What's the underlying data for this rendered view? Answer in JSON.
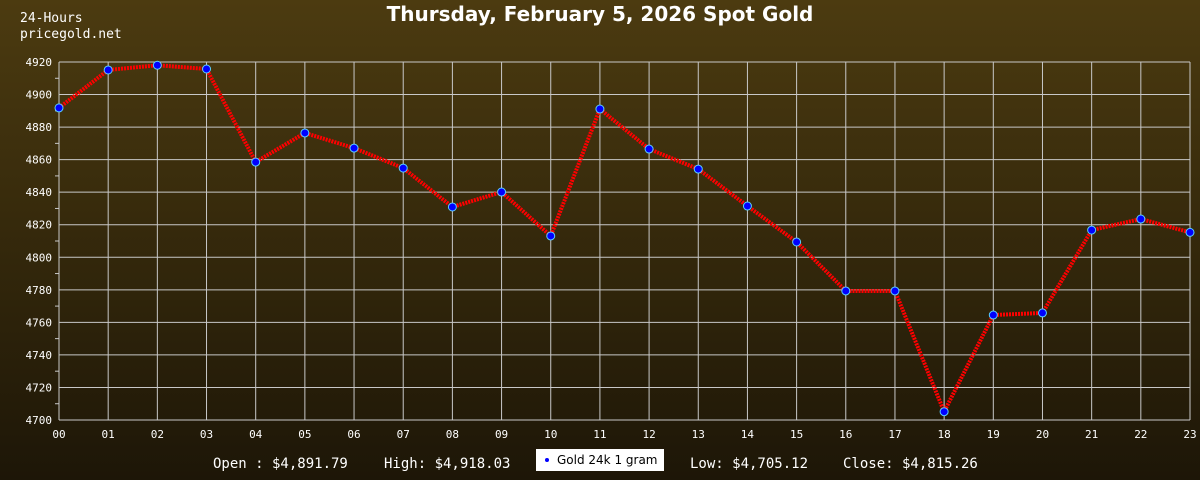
{
  "chart_data": {
    "type": "line",
    "title": "Thursday, February 5, 2026 Spot Gold",
    "corner_label": [
      "24-Hours",
      "pricegold.net"
    ],
    "categories": [
      "00",
      "01",
      "02",
      "03",
      "04",
      "05",
      "06",
      "07",
      "08",
      "09",
      "10",
      "11",
      "12",
      "13",
      "14",
      "15",
      "16",
      "17",
      "18",
      "19",
      "20",
      "21",
      "22",
      "23"
    ],
    "series": [
      {
        "name": "Gold 24k 1 gram",
        "values": [
          4891.8,
          4915.1,
          4918.0,
          4915.7,
          4858.5,
          4876.4,
          4867.1,
          4854.8,
          4830.9,
          4840.1,
          4813.1,
          4891.1,
          4866.5,
          4854.2,
          4831.5,
          4809.4,
          4779.3,
          4779.3,
          4705.1,
          4764.5,
          4765.8,
          4816.7,
          4823.5,
          4815.3
        ],
        "line_color": "#ff0000",
        "marker_color": "#0000ff"
      }
    ],
    "ylim": [
      4700,
      4920
    ],
    "yticks": [
      4700,
      4720,
      4740,
      4760,
      4780,
      4800,
      4820,
      4840,
      4860,
      4880,
      4900,
      4920
    ],
    "grid": true,
    "legend_position": "bottom-center",
    "stats": {
      "open": "Open : $4,891.79",
      "high": "High: $4,918.03",
      "low": "Low: $4,705.12",
      "close": "Close: $4,815.26"
    }
  }
}
